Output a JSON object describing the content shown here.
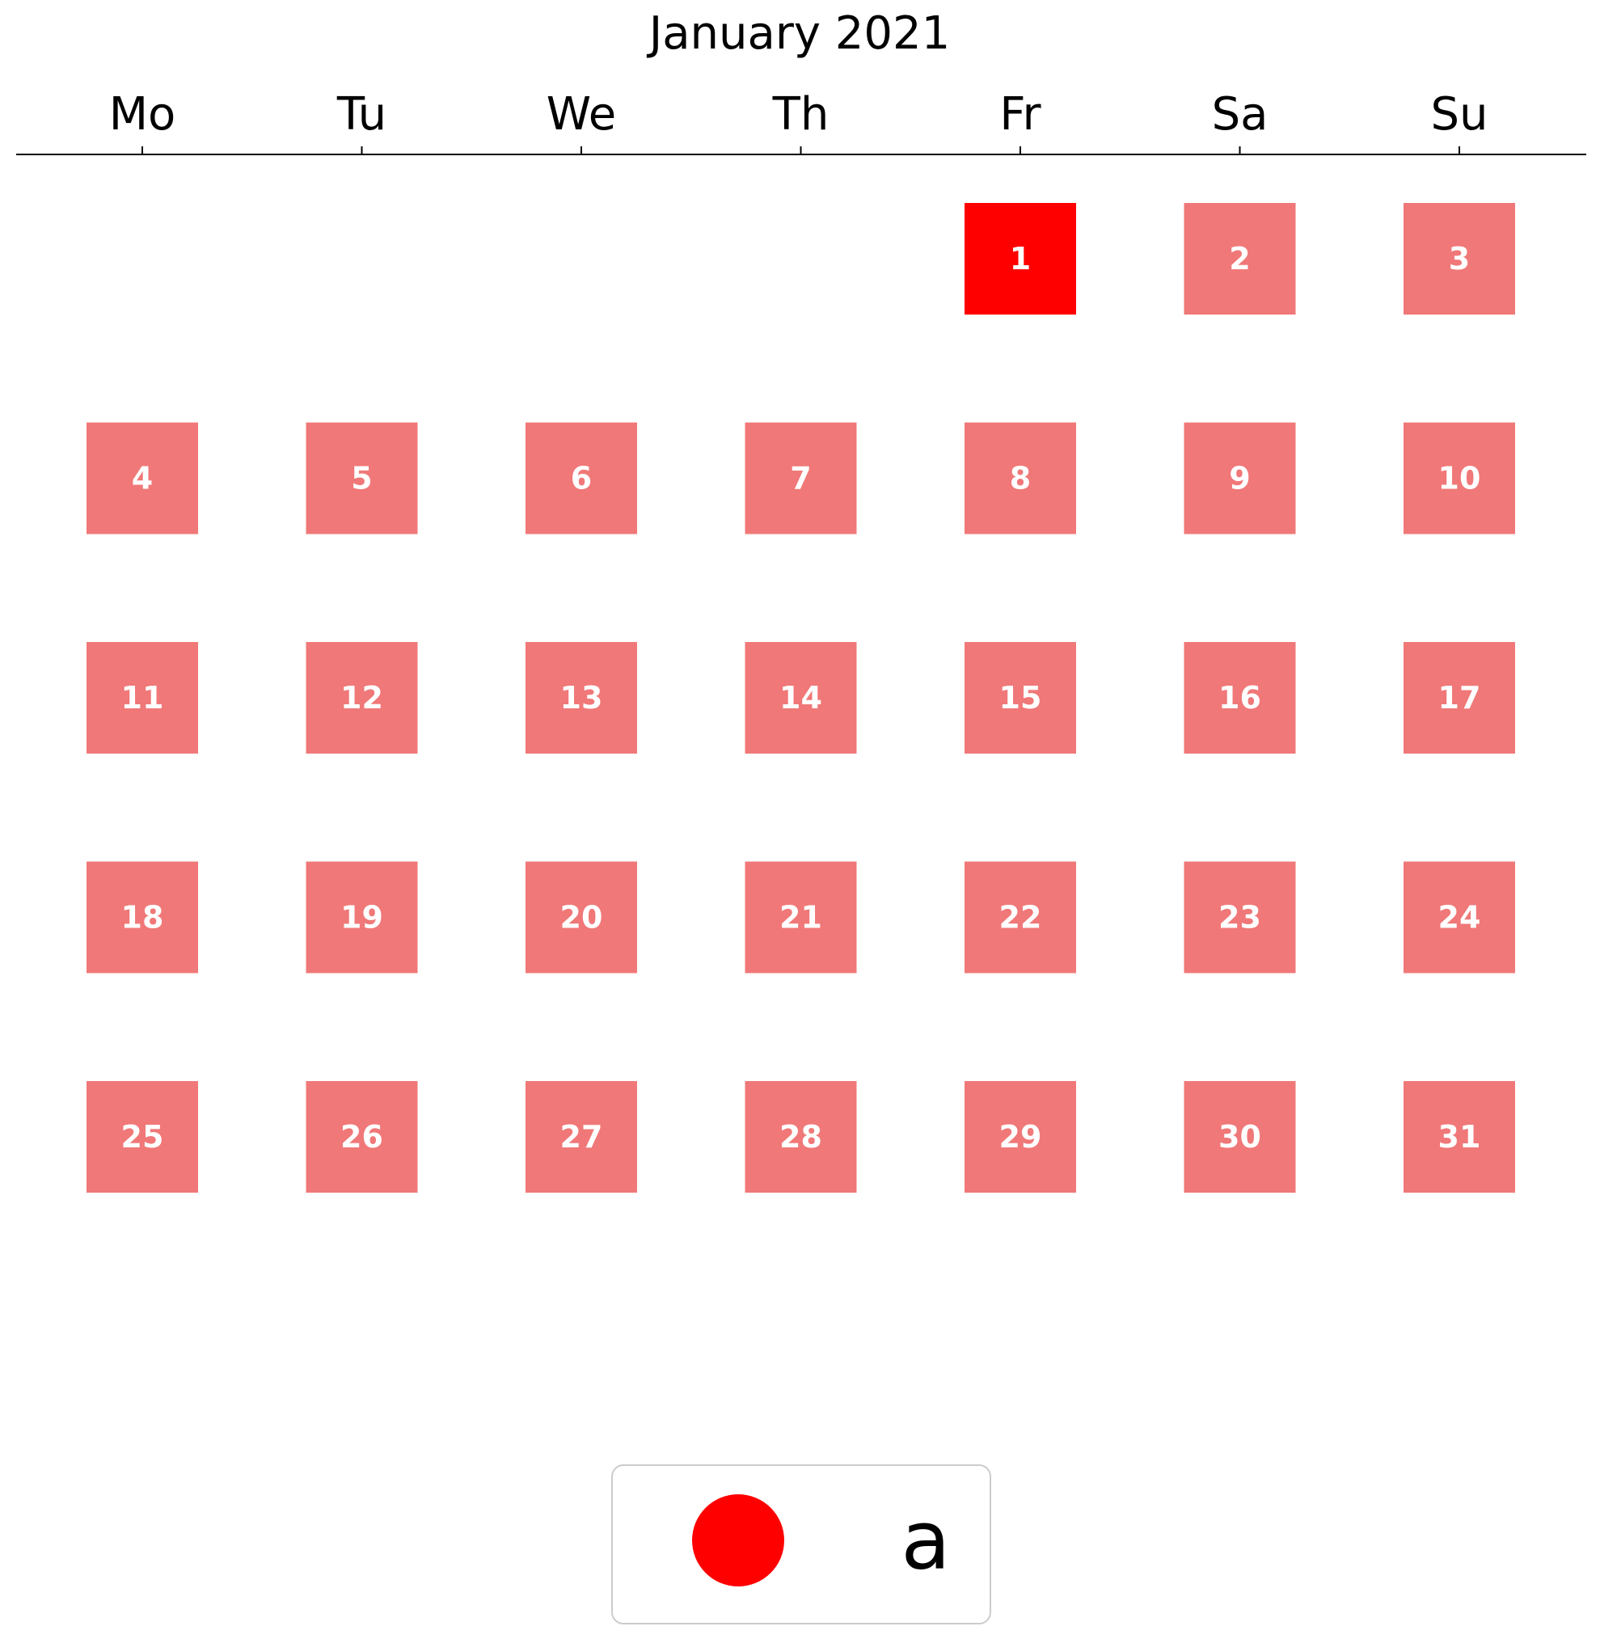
{
  "chart_data": {
    "type": "heatmap",
    "title": "January 2021",
    "weekdays": [
      "Mo",
      "Tu",
      "We",
      "Th",
      "Fr",
      "Sa",
      "Su"
    ],
    "days": [
      {
        "day": 1,
        "label": "1",
        "weekday": "Fr",
        "week": 1,
        "highlighted": true
      },
      {
        "day": 2,
        "label": "2",
        "weekday": "Sa",
        "week": 1,
        "highlighted": false
      },
      {
        "day": 3,
        "label": "3",
        "weekday": "Su",
        "week": 1,
        "highlighted": false
      },
      {
        "day": 4,
        "label": "4",
        "weekday": "Mo",
        "week": 2,
        "highlighted": false
      },
      {
        "day": 5,
        "label": "5",
        "weekday": "Tu",
        "week": 2,
        "highlighted": false
      },
      {
        "day": 6,
        "label": "6",
        "weekday": "We",
        "week": 2,
        "highlighted": false
      },
      {
        "day": 7,
        "label": "7",
        "weekday": "Th",
        "week": 2,
        "highlighted": false
      },
      {
        "day": 8,
        "label": "8",
        "weekday": "Fr",
        "week": 2,
        "highlighted": false
      },
      {
        "day": 9,
        "label": "9",
        "weekday": "Sa",
        "week": 2,
        "highlighted": false
      },
      {
        "day": 10,
        "label": "10",
        "weekday": "Su",
        "week": 2,
        "highlighted": false
      },
      {
        "day": 11,
        "label": "11",
        "weekday": "Mo",
        "week": 3,
        "highlighted": false
      },
      {
        "day": 12,
        "label": "12",
        "weekday": "Tu",
        "week": 3,
        "highlighted": false
      },
      {
        "day": 13,
        "label": "13",
        "weekday": "We",
        "week": 3,
        "highlighted": false
      },
      {
        "day": 14,
        "label": "14",
        "weekday": "Th",
        "week": 3,
        "highlighted": false
      },
      {
        "day": 15,
        "label": "15",
        "weekday": "Fr",
        "week": 3,
        "highlighted": false
      },
      {
        "day": 16,
        "label": "16",
        "weekday": "Sa",
        "week": 3,
        "highlighted": false
      },
      {
        "day": 17,
        "label": "17",
        "weekday": "Su",
        "week": 3,
        "highlighted": false
      },
      {
        "day": 18,
        "label": "18",
        "weekday": "Mo",
        "week": 4,
        "highlighted": false
      },
      {
        "day": 19,
        "label": "19",
        "weekday": "Tu",
        "week": 4,
        "highlighted": false
      },
      {
        "day": 20,
        "label": "20",
        "weekday": "We",
        "week": 4,
        "highlighted": false
      },
      {
        "day": 21,
        "label": "21",
        "weekday": "Th",
        "week": 4,
        "highlighted": false
      },
      {
        "day": 22,
        "label": "22",
        "weekday": "Fr",
        "week": 4,
        "highlighted": false
      },
      {
        "day": 23,
        "label": "23",
        "weekday": "Sa",
        "week": 4,
        "highlighted": false
      },
      {
        "day": 24,
        "label": "24",
        "weekday": "Su",
        "week": 4,
        "highlighted": false
      },
      {
        "day": 25,
        "label": "25",
        "weekday": "Mo",
        "week": 5,
        "highlighted": false
      },
      {
        "day": 26,
        "label": "26",
        "weekday": "Tu",
        "week": 5,
        "highlighted": false
      },
      {
        "day": 27,
        "label": "27",
        "weekday": "We",
        "week": 5,
        "highlighted": false
      },
      {
        "day": 28,
        "label": "28",
        "weekday": "Th",
        "week": 5,
        "highlighted": false
      },
      {
        "day": 29,
        "label": "29",
        "weekday": "Fr",
        "week": 5,
        "highlighted": false
      },
      {
        "day": 30,
        "label": "30",
        "weekday": "Sa",
        "week": 5,
        "highlighted": false
      },
      {
        "day": 31,
        "label": "31",
        "weekday": "Su",
        "week": 5,
        "highlighted": false
      }
    ],
    "colors": {
      "highlighted": "#ff0000",
      "default": "#f07878",
      "day_text": "#ffffff"
    },
    "legend": {
      "placement": "bottom-center",
      "entries": [
        {
          "label": "a",
          "color": "#ff0000",
          "marker": "circle"
        }
      ]
    }
  }
}
